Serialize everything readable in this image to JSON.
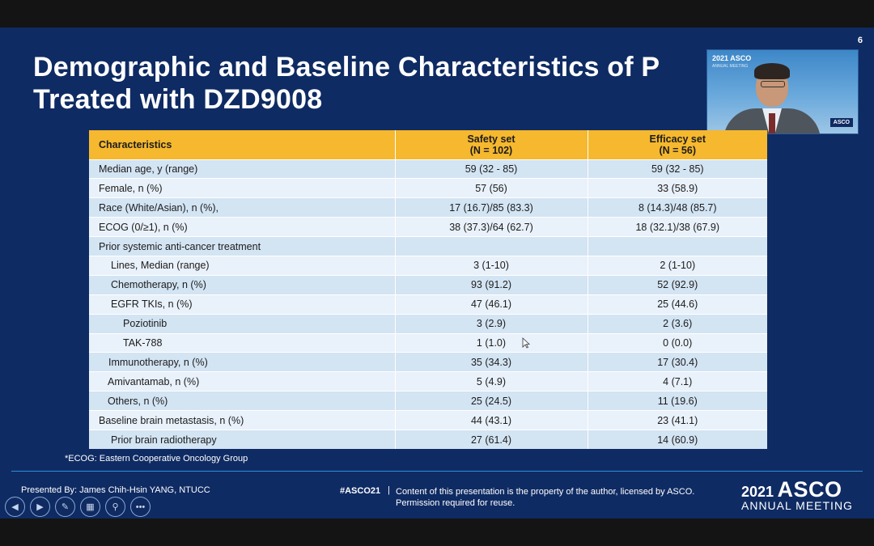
{
  "slide": {
    "number": "6",
    "title_line1": "Demographic and Baseline Characteristics of P",
    "title_line2": "Treated with DZD9008"
  },
  "video": {
    "tag_year_asco": "2021 ASCO",
    "tag_sub": "ANNUAL MEETING",
    "logo": "ASCO"
  },
  "table": {
    "headers": {
      "characteristics": "Characteristics",
      "safety_line1": "Safety set",
      "safety_line2": "(N = 102)",
      "efficacy_line1": "Efficacy set",
      "efficacy_line2": "(N = 56)"
    },
    "rows": [
      {
        "label": "Median age, y (range)",
        "safety": "59 (32 - 85)",
        "efficacy": "59 (32 - 85)"
      },
      {
        "label": "Female, n (%)",
        "safety": "57 (56)",
        "efficacy": "33 (58.9)"
      },
      {
        "label": "Race (White/Asian), n (%),",
        "safety": "17 (16.7)/85 (83.3)",
        "efficacy": "8 (14.3)/48 (85.7)"
      },
      {
        "label": "ECOG (0/≥1), n (%)",
        "safety": "38 (37.3)/64 (62.7)",
        "efficacy": "18 (32.1)/38 (67.9)"
      },
      {
        "label": "Prior systemic anti-cancer treatment",
        "safety": "",
        "efficacy": ""
      },
      {
        "label": "Lines, Median (range)",
        "safety": "3 (1-10)",
        "efficacy": "2 (1-10)"
      },
      {
        "label": "Chemotherapy, n (%)",
        "safety": "93 (91.2)",
        "efficacy": "52 (92.9)"
      },
      {
        "label": "EGFR TKIs, n (%)",
        "safety": "47 (46.1)",
        "efficacy": "25 (44.6)"
      },
      {
        "label": "Poziotinib",
        "safety": "3 (2.9)",
        "efficacy": "2 (3.6)"
      },
      {
        "label": "TAK-788",
        "safety": "1 (1.0)",
        "efficacy": "0 (0.0)"
      },
      {
        "label": "Immunotherapy, n (%)",
        "safety": "35 (34.3)",
        "efficacy": "17 (30.4)"
      },
      {
        "label": "Amivantamab, n (%)",
        "safety": "5 (4.9)",
        "efficacy": "4 (7.1)"
      },
      {
        "label": "Others, n (%)",
        "safety": "25 (24.5)",
        "efficacy": "11 (19.6)"
      },
      {
        "label": "Baseline brain metastasis, n (%)",
        "safety": "44 (43.1)",
        "efficacy": "23 (41.1)"
      },
      {
        "label": "Prior brain radiotherapy",
        "safety": "27 (61.4)",
        "efficacy": "14 (60.9)"
      }
    ]
  },
  "footnote": "*ECOG: Eastern Cooperative Oncology Group",
  "footer": {
    "presented": "Presented By: James Chih-Hsin YANG, NTUCC",
    "hashtag": "#ASCO21",
    "separator": "|",
    "content_line1": "Content of this presentation is the property of the author, licensed by ASCO.",
    "content_line2": "Permission required for reuse.",
    "brand_year": "2021",
    "brand_asco": "ASCO",
    "brand_meeting": "ANNUAL MEETING"
  },
  "controls": {
    "prev": "◀",
    "next": "▶",
    "pen": "✎",
    "slides": "▦",
    "zoom": "⚲",
    "more": "•••"
  },
  "colors": {
    "slide_bg": "#0f2b63",
    "header_bg": "#f5b82e",
    "row_odd": "#d3e4f3",
    "row_even": "#e9f1fa"
  }
}
